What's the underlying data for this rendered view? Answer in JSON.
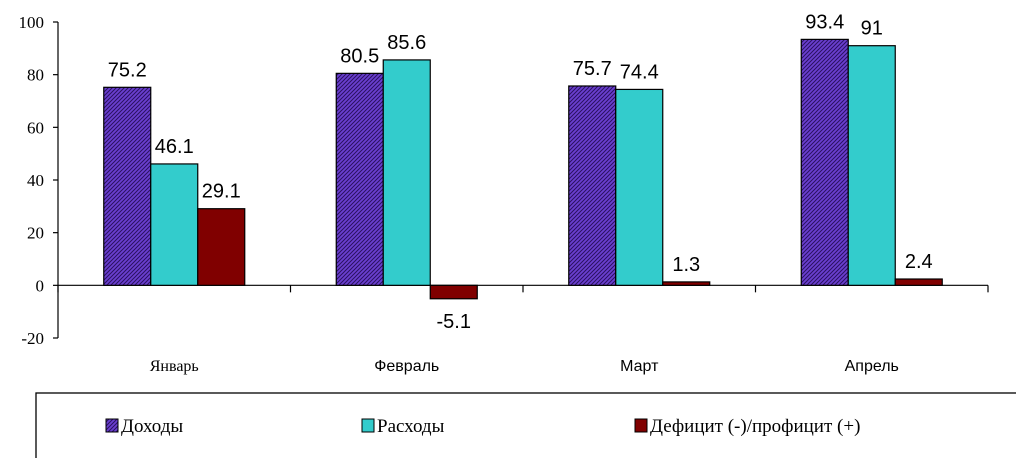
{
  "chart_data": {
    "type": "bar",
    "categories": [
      "Январь",
      "Февраль",
      "Март",
      "Апрель"
    ],
    "series": [
      {
        "name": "Доходы",
        "values": [
          75.2,
          80.5,
          75.7,
          93.4
        ],
        "color": "#6633cc",
        "pattern": "hatch"
      },
      {
        "name": "Расходы",
        "values": [
          46.1,
          85.6,
          74.4,
          91
        ],
        "color": "#33cccc"
      },
      {
        "name": "Дефицит (-)/профицит (+)",
        "values": [
          29.1,
          -5.1,
          1.3,
          2.4
        ],
        "color": "#800000"
      }
    ],
    "ylim": [
      -20,
      100
    ],
    "yticks": [
      -20,
      0,
      20,
      40,
      60,
      80,
      100
    ],
    "grid": false,
    "legend": "bottom"
  }
}
